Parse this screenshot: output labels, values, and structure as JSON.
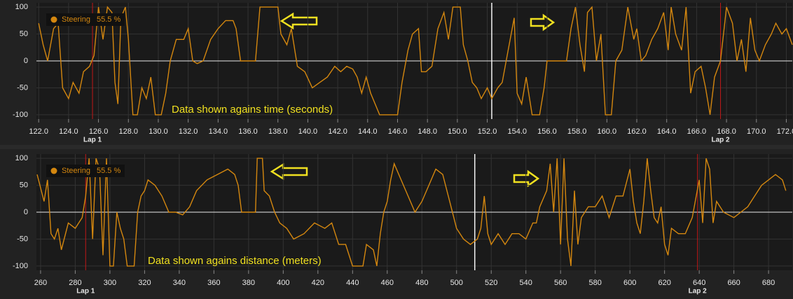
{
  "chart_data": [
    {
      "type": "line",
      "annotation": "Data shown agains time (seconds)",
      "x": [
        122.0,
        122.3,
        122.6,
        123.0,
        123.3,
        123.6,
        124.0,
        124.3,
        124.7,
        125.0,
        125.4,
        125.7,
        126.0,
        126.3,
        126.6,
        126.9,
        127.1,
        127.3,
        127.5,
        127.8,
        128.0,
        128.3,
        128.6,
        128.9,
        129.2,
        129.5,
        129.8,
        130.2,
        130.5,
        130.8,
        131.2,
        131.7,
        132.0,
        132.3,
        132.6,
        133.0,
        133.5,
        134.0,
        134.5,
        135.0,
        135.2,
        135.5,
        136.5,
        136.8,
        138.0,
        138.2,
        138.6,
        138.9,
        139.3,
        139.8,
        140.3,
        140.8,
        141.3,
        141.8,
        142.2,
        142.6,
        143.0,
        143.3,
        143.6,
        143.9,
        144.2,
        144.5,
        144.8,
        145.5,
        146.0,
        146.3,
        146.7,
        147.0,
        147.4,
        147.6,
        147.9,
        148.3,
        148.7,
        149.1,
        149.4,
        149.7,
        150.2,
        150.4,
        150.7,
        151.0,
        151.3,
        151.6,
        152.0,
        152.3,
        152.7,
        153.0,
        153.4,
        153.8,
        154.0,
        154.3,
        154.6,
        155.0,
        155.5,
        155.8,
        156.0,
        157.0,
        157.3,
        157.6,
        157.9,
        158.2,
        158.5,
        158.7,
        159.0,
        159.3,
        159.6,
        159.9,
        160.3,
        160.6,
        161.0,
        161.4,
        161.8,
        162.0,
        162.3,
        162.6,
        163.0,
        163.4,
        163.8,
        164.1,
        164.3,
        164.6,
        165.0,
        165.3,
        165.6,
        165.9,
        166.3,
        166.6,
        166.9,
        167.2,
        167.6,
        168.0,
        168.4,
        168.7,
        169.0,
        169.3,
        169.6,
        169.9,
        170.2,
        170.6,
        171.0,
        171.3,
        171.7,
        172.0,
        172.4
      ],
      "series": [
        {
          "name": "Steering",
          "color": "#d4870f",
          "readout": "55.5 %",
          "values": [
            70,
            30,
            0,
            60,
            70,
            -50,
            -70,
            -40,
            -60,
            -20,
            -10,
            10,
            100,
            40,
            100,
            90,
            -40,
            -80,
            80,
            100,
            40,
            -100,
            -100,
            -50,
            -70,
            -30,
            -100,
            -100,
            -60,
            0,
            40,
            40,
            60,
            0,
            -5,
            0,
            40,
            60,
            75,
            75,
            60,
            0,
            0,
            100,
            100,
            50,
            30,
            60,
            -10,
            -20,
            -50,
            -40,
            -30,
            -10,
            -20,
            -10,
            -15,
            -30,
            -60,
            -30,
            -60,
            -80,
            -100,
            -100,
            -100,
            -40,
            20,
            50,
            60,
            -20,
            -20,
            -10,
            60,
            90,
            40,
            100,
            100,
            30,
            0,
            -40,
            -50,
            -70,
            -50,
            -70,
            -50,
            -40,
            20,
            80,
            -60,
            -80,
            -30,
            -100,
            -100,
            -50,
            0,
            0,
            0,
            60,
            100,
            30,
            -20,
            90,
            100,
            0,
            50,
            -100,
            -100,
            0,
            20,
            100,
            40,
            60,
            0,
            10,
            40,
            60,
            90,
            20,
            100,
            50,
            20,
            100,
            -60,
            -20,
            -10,
            -50,
            -100,
            -30,
            0,
            100,
            70,
            0,
            40,
            -20,
            80,
            20,
            0,
            30,
            50,
            70,
            50,
            60,
            30
          ]
        }
      ],
      "xlim": [
        121.85,
        172.4
      ],
      "ylim": [
        -108,
        108
      ],
      "xticks": [
        {
          "value": 122,
          "label": "122.0"
        },
        {
          "value": 124,
          "label": "124.0"
        },
        {
          "value": 126,
          "label": "126.0"
        },
        {
          "value": 128,
          "label": "128.0"
        },
        {
          "value": 130,
          "label": "130.0"
        },
        {
          "value": 132,
          "label": "132.0"
        },
        {
          "value": 134,
          "label": "134.0"
        },
        {
          "value": 136,
          "label": "136.0"
        },
        {
          "value": 138,
          "label": "138.0"
        },
        {
          "value": 140,
          "label": "140.0"
        },
        {
          "value": 142,
          "label": "142.0"
        },
        {
          "value": 144,
          "label": "144.0"
        },
        {
          "value": 146,
          "label": "146.0"
        },
        {
          "value": 148,
          "label": "148.0"
        },
        {
          "value": 150,
          "label": "150.0"
        },
        {
          "value": 152,
          "label": "152.0"
        },
        {
          "value": 154,
          "label": "154.0"
        },
        {
          "value": 156,
          "label": "156.0"
        },
        {
          "value": 158,
          "label": "158.0"
        },
        {
          "value": 160,
          "label": "160.0"
        },
        {
          "value": 162,
          "label": "162.0"
        },
        {
          "value": 164,
          "label": "164.0"
        },
        {
          "value": 166,
          "label": "166.0"
        },
        {
          "value": 168,
          "label": "168.0"
        },
        {
          "value": 170,
          "label": "170.0"
        },
        {
          "value": 172,
          "label": "172.0"
        }
      ],
      "yticks": [
        100,
        50,
        0,
        -50,
        -100
      ],
      "laps": [
        {
          "label": "Lap 1",
          "x": 125.6
        },
        {
          "label": "Lap 2",
          "x": 167.6
        }
      ],
      "cursor_x": 152.3,
      "grid": true
    },
    {
      "type": "line",
      "annotation": "Data shown agains distance (meters)",
      "x": [
        258,
        262,
        264,
        266,
        268,
        270,
        272,
        276,
        280,
        284,
        286,
        288,
        290,
        292,
        294,
        296,
        298,
        300,
        302,
        304,
        306,
        308,
        310,
        314,
        316,
        318,
        320,
        322,
        326,
        330,
        334,
        338,
        342,
        346,
        350,
        356,
        362,
        368,
        372,
        374,
        376,
        382,
        384,
        385,
        388,
        389,
        392,
        395,
        398,
        402,
        406,
        412,
        418,
        424,
        428,
        432,
        436,
        440,
        446,
        448,
        452,
        454,
        456,
        458,
        460,
        462,
        464,
        468,
        472,
        476,
        480,
        484,
        488,
        492,
        496,
        500,
        504,
        508,
        512,
        514,
        516,
        518,
        520,
        524,
        528,
        532,
        536,
        540,
        544,
        546,
        548,
        552,
        554,
        556,
        558,
        560,
        562,
        564,
        566,
        568,
        570,
        572,
        576,
        580,
        584,
        588,
        592,
        596,
        600,
        602,
        604,
        606,
        608,
        610,
        612,
        614,
        616,
        618,
        620,
        622,
        624,
        628,
        632,
        636,
        640,
        642,
        644,
        646,
        648,
        650,
        654,
        660,
        664,
        668,
        672,
        676,
        680,
        684,
        688,
        690
      ],
      "series": [
        {
          "name": "Steering",
          "color": "#d4870f",
          "readout": "55.5 %",
          "values": [
            70,
            20,
            60,
            -40,
            -50,
            -30,
            -70,
            -20,
            -30,
            -10,
            30,
            100,
            -50,
            100,
            80,
            -80,
            100,
            -100,
            -100,
            0,
            -30,
            -50,
            -100,
            -100,
            0,
            30,
            40,
            60,
            50,
            30,
            0,
            0,
            -5,
            10,
            40,
            60,
            70,
            80,
            70,
            50,
            0,
            0,
            0,
            100,
            100,
            40,
            30,
            0,
            -20,
            -30,
            -50,
            -40,
            -20,
            -30,
            -20,
            -60,
            -60,
            -100,
            -100,
            -60,
            -70,
            -100,
            -40,
            0,
            20,
            60,
            90,
            60,
            30,
            0,
            20,
            50,
            80,
            70,
            20,
            -30,
            -50,
            -60,
            -50,
            -30,
            30,
            -40,
            -60,
            -40,
            -60,
            -40,
            -40,
            -50,
            -20,
            -20,
            10,
            40,
            90,
            0,
            100,
            -60,
            100,
            -50,
            -100,
            40,
            -60,
            -10,
            10,
            10,
            30,
            -10,
            30,
            30,
            80,
            20,
            -20,
            -40,
            20,
            100,
            40,
            -10,
            -20,
            10,
            -60,
            -80,
            -30,
            -40,
            -40,
            -10,
            60,
            -20,
            100,
            80,
            -20,
            20,
            0,
            -10,
            0,
            10,
            30,
            50,
            60,
            70,
            60,
            40
          ]
        }
      ],
      "xlim": [
        257.6,
        693.7
      ],
      "ylim": [
        -108,
        108
      ],
      "xticks": [
        260,
        280,
        300,
        320,
        340,
        360,
        380,
        400,
        420,
        440,
        460,
        480,
        500,
        520,
        540,
        560,
        580,
        600,
        620,
        640,
        660,
        680
      ],
      "yticks": [
        100,
        50,
        0,
        -50,
        -100
      ],
      "laps": [
        {
          "label": "Lap 1",
          "x": 286
        },
        {
          "label": "Lap 2",
          "x": 639
        }
      ],
      "cursor_x": 510.5,
      "grid": true
    }
  ]
}
